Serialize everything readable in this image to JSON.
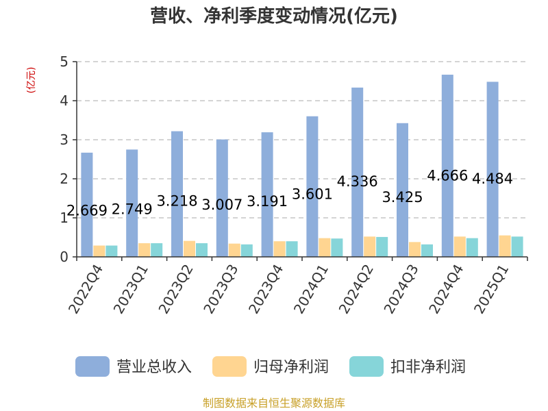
{
  "chart_data": {
    "type": "bar",
    "title": "营收、净利季度变动情况(亿元)",
    "unit_label": "(亿元)",
    "categories": [
      "2022Q4",
      "2023Q1",
      "2023Q2",
      "2023Q3",
      "2023Q4",
      "2024Q1",
      "2024Q2",
      "2024Q3",
      "2024Q4",
      "2025Q1"
    ],
    "series": [
      {
        "name": "营业总收入",
        "color": "#8eaedb",
        "values": [
          2.669,
          2.749,
          3.218,
          3.007,
          3.191,
          3.601,
          4.336,
          3.425,
          4.666,
          4.484
        ]
      },
      {
        "name": "归母净利润",
        "color": "#ffd591",
        "values": [
          0.29,
          0.35,
          0.41,
          0.34,
          0.4,
          0.48,
          0.52,
          0.38,
          0.52,
          0.55
        ]
      },
      {
        "name": "扣非净利润",
        "color": "#86d5d9",
        "values": [
          0.29,
          0.35,
          0.35,
          0.32,
          0.4,
          0.47,
          0.51,
          0.32,
          0.48,
          0.52
        ]
      }
    ],
    "data_labels": [
      "2.669",
      "2.749",
      "3.218",
      "3.007",
      "3.191",
      "3.601",
      "4.336",
      "3.425",
      "4.666",
      "4.484"
    ],
    "y_ticks": [
      "0",
      "1",
      "2",
      "3",
      "4",
      "5"
    ],
    "ylim": [
      0,
      5
    ],
    "grid": true,
    "legend_position": "bottom"
  },
  "source": "制图数据来自恒生聚源数据库"
}
